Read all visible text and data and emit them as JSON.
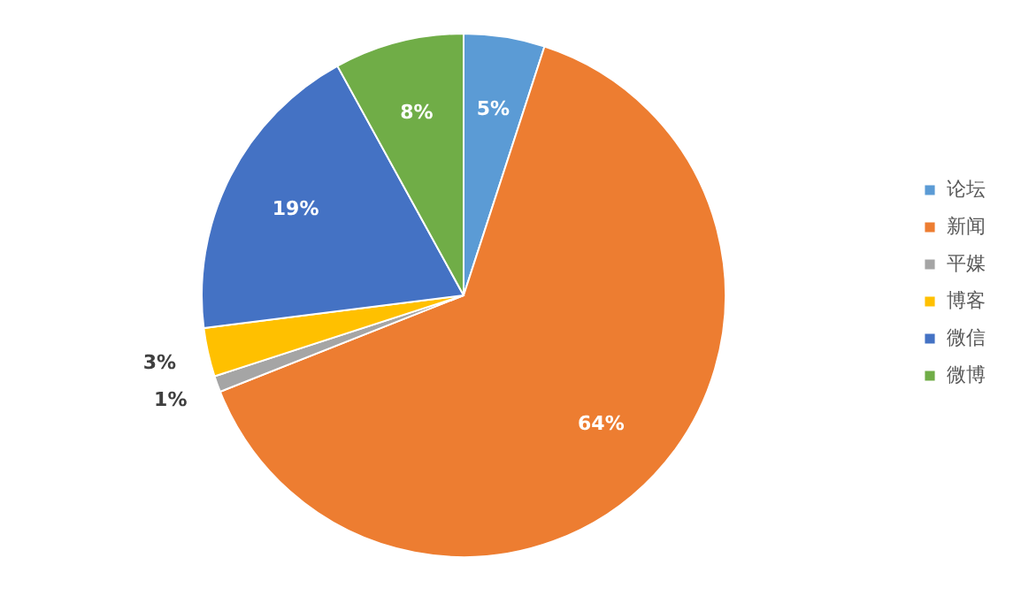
{
  "chart_data": {
    "type": "pie",
    "categories": [
      "论坛",
      "新闻",
      "平媒",
      "博客",
      "微信",
      "微博"
    ],
    "values": [
      5,
      64,
      1,
      3,
      19,
      8
    ],
    "colors": [
      "#5b9bd5",
      "#ed7d31",
      "#a5a5a5",
      "#ffc000",
      "#4472c4",
      "#70ad47"
    ],
    "value_labels": [
      "5%",
      "64%",
      "1%",
      "3%",
      "19%",
      "8%"
    ],
    "legend": "right"
  }
}
